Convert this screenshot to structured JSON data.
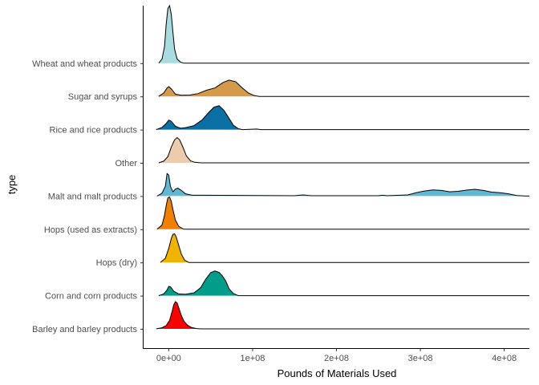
{
  "chart_data": {
    "type": "ridgeline",
    "title": "",
    "xlabel": "Pounds of Materials Used",
    "ylabel": "type",
    "xlim": [
      -30000000,
      430000000
    ],
    "x_ticks": [
      0,
      100000000,
      200000000,
      300000000,
      400000000
    ],
    "x_tick_labels": [
      "0e+00",
      "1e+08",
      "2e+08",
      "3e+08",
      "4e+08"
    ],
    "grid": false,
    "legend": "none",
    "series": [
      {
        "category": "Barley and barley products",
        "color": "#FF0000",
        "curve": [
          [
            -15000000,
            0
          ],
          [
            -8000000,
            0.04
          ],
          [
            -3000000,
            0.12
          ],
          [
            1000000,
            0.3
          ],
          [
            4000000,
            0.62
          ],
          [
            6000000,
            0.86
          ],
          [
            8000000,
            0.97
          ],
          [
            10000000,
            0.92
          ],
          [
            12000000,
            0.75
          ],
          [
            15000000,
            0.48
          ],
          [
            18000000,
            0.28
          ],
          [
            22000000,
            0.14
          ],
          [
            27000000,
            0.05
          ],
          [
            33000000,
            0.01
          ],
          [
            38000000,
            0
          ]
        ]
      },
      {
        "category": "Corn and corn products",
        "color": "#009E8A",
        "curve": [
          [
            -12000000,
            0
          ],
          [
            -6000000,
            0.06
          ],
          [
            -2000000,
            0.2
          ],
          [
            0,
            0.33
          ],
          [
            2000000,
            0.32
          ],
          [
            6000000,
            0.16
          ],
          [
            12000000,
            0.06
          ],
          [
            20000000,
            0.05
          ],
          [
            30000000,
            0.1
          ],
          [
            38000000,
            0.28
          ],
          [
            44000000,
            0.58
          ],
          [
            50000000,
            0.82
          ],
          [
            55000000,
            0.88
          ],
          [
            60000000,
            0.83
          ],
          [
            64000000,
            0.7
          ],
          [
            68000000,
            0.52
          ],
          [
            72000000,
            0.24
          ],
          [
            77000000,
            0.08
          ],
          [
            83000000,
            0
          ]
        ]
      },
      {
        "category": "Hops (dry)",
        "color": "#F0B400",
        "curve": [
          [
            -10000000,
            0
          ],
          [
            -4000000,
            0.15
          ],
          [
            0,
            0.5
          ],
          [
            3000000,
            0.85
          ],
          [
            5000000,
            1.0
          ],
          [
            7000000,
            1.02
          ],
          [
            9000000,
            0.9
          ],
          [
            12000000,
            0.6
          ],
          [
            15000000,
            0.3
          ],
          [
            19000000,
            0.08
          ],
          [
            24000000,
            0
          ]
        ]
      },
      {
        "category": "Hops (used as extracts)",
        "color": "#F28000",
        "curve": [
          [
            -14000000,
            0
          ],
          [
            -8000000,
            0.15
          ],
          [
            -5000000,
            0.5
          ],
          [
            -3000000,
            0.85
          ],
          [
            -1000000,
            1.12
          ],
          [
            1000000,
            1.15
          ],
          [
            3000000,
            1.0
          ],
          [
            5000000,
            0.7
          ],
          [
            8000000,
            0.32
          ],
          [
            12000000,
            0.1
          ],
          [
            18000000,
            0
          ]
        ]
      },
      {
        "category": "Malt and malt products",
        "color": "#62B8D4",
        "curve": [
          [
            -14000000,
            0
          ],
          [
            -8000000,
            0.1
          ],
          [
            -4000000,
            0.35
          ],
          [
            -2000000,
            0.8
          ],
          [
            0,
            0.75
          ],
          [
            2000000,
            0.35
          ],
          [
            5000000,
            0.15
          ],
          [
            8000000,
            0.25
          ],
          [
            11000000,
            0.28
          ],
          [
            15000000,
            0.2
          ],
          [
            20000000,
            0.08
          ],
          [
            28000000,
            0.03
          ],
          [
            150000000,
            0.01
          ],
          [
            160000000,
            0.04
          ],
          [
            170000000,
            0.01
          ],
          [
            250000000,
            0.01
          ],
          [
            255000000,
            0.03
          ],
          [
            260000000,
            0.01
          ],
          [
            285000000,
            0.04
          ],
          [
            295000000,
            0.12
          ],
          [
            305000000,
            0.18
          ],
          [
            315000000,
            0.22
          ],
          [
            325000000,
            0.2
          ],
          [
            335000000,
            0.15
          ],
          [
            345000000,
            0.17
          ],
          [
            355000000,
            0.21
          ],
          [
            365000000,
            0.24
          ],
          [
            375000000,
            0.2
          ],
          [
            385000000,
            0.14
          ],
          [
            395000000,
            0.12
          ],
          [
            405000000,
            0.08
          ],
          [
            415000000,
            0.02
          ],
          [
            425000000,
            0
          ]
        ]
      },
      {
        "category": "Other",
        "color": "#EDCCAE",
        "curve": [
          [
            -12000000,
            0
          ],
          [
            -6000000,
            0.06
          ],
          [
            -1000000,
            0.22
          ],
          [
            3000000,
            0.56
          ],
          [
            7000000,
            0.82
          ],
          [
            10000000,
            0.9
          ],
          [
            13000000,
            0.82
          ],
          [
            17000000,
            0.55
          ],
          [
            21000000,
            0.25
          ],
          [
            26000000,
            0.07
          ],
          [
            31000000,
            0.02
          ],
          [
            38000000,
            0
          ]
        ]
      },
      {
        "category": "Rice and rice products",
        "color": "#0A6FA3",
        "curve": [
          [
            -15000000,
            0
          ],
          [
            -8000000,
            0.08
          ],
          [
            -3000000,
            0.22
          ],
          [
            0,
            0.34
          ],
          [
            3000000,
            0.3
          ],
          [
            8000000,
            0.12
          ],
          [
            14000000,
            0.05
          ],
          [
            20000000,
            0.07
          ],
          [
            30000000,
            0.14
          ],
          [
            40000000,
            0.35
          ],
          [
            48000000,
            0.62
          ],
          [
            54000000,
            0.8
          ],
          [
            60000000,
            0.85
          ],
          [
            66000000,
            0.68
          ],
          [
            72000000,
            0.4
          ],
          [
            77000000,
            0.16
          ],
          [
            83000000,
            0.03
          ],
          [
            88000000,
            0
          ],
          [
            105000000,
            0.02
          ],
          [
            110000000,
            0
          ]
        ]
      },
      {
        "category": "Sugar and syrups",
        "color": "#D49A4A",
        "curve": [
          [
            -12000000,
            0
          ],
          [
            -6000000,
            0.12
          ],
          [
            -2000000,
            0.3
          ],
          [
            0,
            0.35
          ],
          [
            3000000,
            0.27
          ],
          [
            8000000,
            0.08
          ],
          [
            15000000,
            0.04
          ],
          [
            25000000,
            0.05
          ],
          [
            35000000,
            0.1
          ],
          [
            45000000,
            0.22
          ],
          [
            55000000,
            0.3
          ],
          [
            65000000,
            0.5
          ],
          [
            72000000,
            0.58
          ],
          [
            80000000,
            0.52
          ],
          [
            87000000,
            0.32
          ],
          [
            95000000,
            0.12
          ],
          [
            102000000,
            0.03
          ],
          [
            108000000,
            0
          ]
        ]
      },
      {
        "category": "Wheat and wheat products",
        "color": "#A8DCE0",
        "curve": [
          [
            -12000000,
            0
          ],
          [
            -8000000,
            0.15
          ],
          [
            -5000000,
            0.6
          ],
          [
            -3000000,
            1.4
          ],
          [
            -1000000,
            1.95
          ],
          [
            1000000,
            2.05
          ],
          [
            3000000,
            1.75
          ],
          [
            5000000,
            1.1
          ],
          [
            7000000,
            0.5
          ],
          [
            10000000,
            0.15
          ],
          [
            14000000,
            0.04
          ],
          [
            18000000,
            0
          ]
        ]
      }
    ]
  }
}
